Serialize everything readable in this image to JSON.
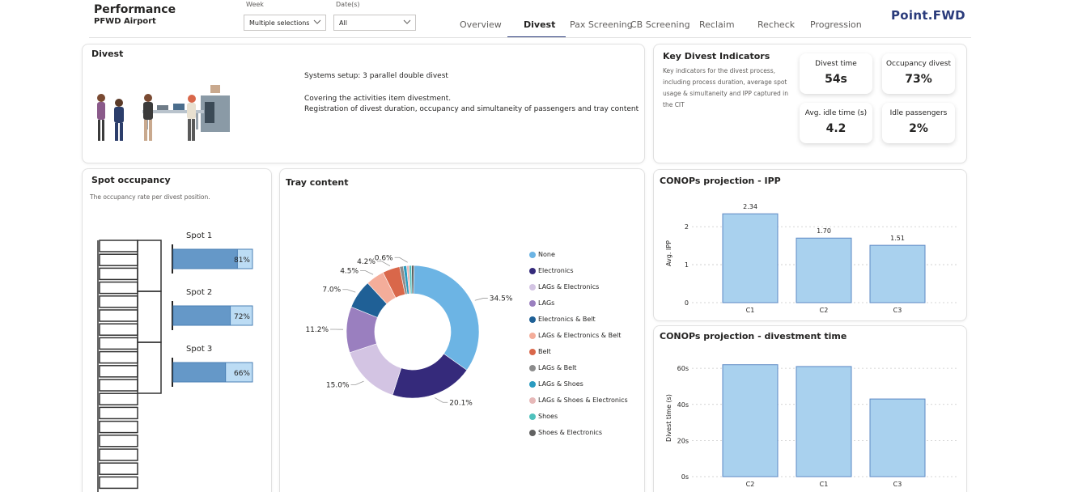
{
  "header": {
    "title": "Performance",
    "subtitle": "PFWD Airport",
    "week_label": "Week",
    "week_value": "Multiple selections",
    "date_label": "Date(s)",
    "date_value": "All",
    "logo": "Point.FWD"
  },
  "tabs": [
    "Overview",
    "Divest",
    "Pax Screening",
    "CB Screening",
    "Reclaim",
    "Recheck",
    "Progression"
  ],
  "divest": {
    "title": "Divest",
    "setup": "Systems setup:  3 parallel double divest",
    "line1": "Covering the activities item divestment.",
    "line2": "Registration of divest duration, occupancy and simultaneity of passengers and tray content"
  },
  "kpis": {
    "title": "Key Divest Indicators",
    "description": "Key indicators for the divest process, including process duration, average spot usage & simultaneity and IPP captured in the CIT",
    "items": [
      {
        "label": "Divest time",
        "value": "54s"
      },
      {
        "label": "Occupancy divest",
        "value": "73%"
      },
      {
        "label": "Avg. idle time (s)",
        "value": "4.2"
      },
      {
        "label": "Idle passengers",
        "value": "2%"
      }
    ]
  },
  "spot": {
    "title": "Spot occupancy",
    "subtitle": "The occupancy rate per divest position.",
    "spots": [
      {
        "label": "Spot 1",
        "value": 0.81,
        "text": "81%"
      },
      {
        "label": "Spot 2",
        "value": 0.72,
        "text": "72%"
      },
      {
        "label": "Spot 3",
        "value": 0.66,
        "text": "66%"
      }
    ]
  },
  "tray": {
    "title": "Tray content"
  },
  "ipp": {
    "title": "CONOPs projection - IPP"
  },
  "divtime": {
    "title": "CONOPs projection - divestment time"
  },
  "chart_data": [
    {
      "type": "pie",
      "title": "Tray content",
      "donut": true,
      "slices": [
        {
          "name": "None",
          "value": 34.5,
          "label": "34.5%",
          "color": "#6cb4e4"
        },
        {
          "name": "Electronics",
          "value": 20.1,
          "label": "20.1%",
          "color": "#352a7b"
        },
        {
          "name": "LAGs & Electronics",
          "value": 15.0,
          "label": "15.0%",
          "color": "#d3c4e3"
        },
        {
          "name": "LAGs",
          "value": 11.2,
          "label": "11.2%",
          "color": "#9a7fbf"
        },
        {
          "name": "Electronics & Belt",
          "value": 7.0,
          "label": "7.0%",
          "color": "#1f6096"
        },
        {
          "name": "LAGs & Electronics & Belt",
          "value": 4.5,
          "label": "4.5%",
          "color": "#f4ad9a"
        },
        {
          "name": "Belt",
          "value": 4.2,
          "label": "4.2%",
          "color": "#d9674a"
        },
        {
          "name": "LAGs & Belt",
          "value": 0.9,
          "label": "",
          "color": "#8c8c8c"
        },
        {
          "name": "LAGs & Shoes",
          "value": 0.8,
          "label": "",
          "color": "#2a9bc0"
        },
        {
          "name": "LAGs & Shoes & Electronics",
          "value": 0.6,
          "label": "0.6%",
          "color": "#e6b8b8"
        },
        {
          "name": "Shoes",
          "value": 0.6,
          "label": "",
          "color": "#4fc1bd"
        },
        {
          "name": "Shoes & Electronics",
          "value": 0.6,
          "label": "",
          "color": "#616161"
        }
      ]
    },
    {
      "type": "bar",
      "title": "CONOPs projection - IPP",
      "categories": [
        "C1",
        "C2",
        "C3"
      ],
      "values": [
        2.34,
        1.7,
        1.51
      ],
      "value_labels": [
        "2.34",
        "1.70",
        "1.51"
      ],
      "ylabel": "Avg. IPP",
      "yticks": [
        "0",
        "1",
        "2"
      ],
      "ylim": [
        0,
        2.6
      ]
    },
    {
      "type": "bar",
      "title": "CONOPs projection - divestment time",
      "categories": [
        "C2",
        "C1",
        "C3"
      ],
      "values": [
        62,
        61,
        43
      ],
      "ylabel": "Divest time (s)",
      "yticks": [
        "0s",
        "20s",
        "40s",
        "60s"
      ],
      "ylim": [
        0,
        65
      ]
    }
  ]
}
